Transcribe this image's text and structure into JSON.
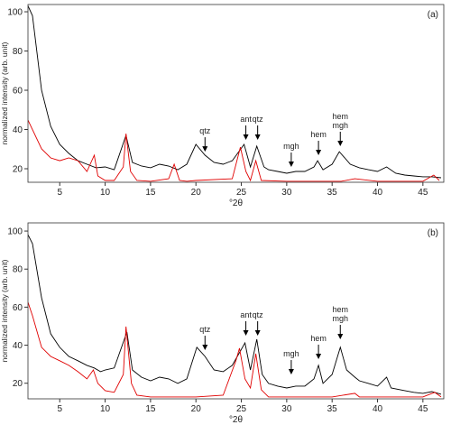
{
  "chart_data": [
    {
      "type": "line",
      "panel_label": "(a)",
      "xlabel": "°2θ",
      "ylabel": "normalized intensity (arb. unit)",
      "xlim": [
        1.5,
        47.3
      ],
      "ylim": [
        13.1,
        103.7
      ],
      "xticks": [
        5,
        10,
        15,
        20,
        25,
        30,
        35,
        40,
        45
      ],
      "yticks": [
        20,
        40,
        60,
        80,
        100
      ],
      "series": [
        {
          "color": "#000000",
          "x": [
            1.5,
            2,
            3,
            4,
            5,
            6,
            7,
            8,
            9,
            10,
            11,
            12.3,
            13,
            14,
            15,
            16,
            17,
            18,
            19,
            20,
            21,
            22,
            23,
            24,
            25.3,
            26,
            26.7,
            27.5,
            28,
            29,
            30,
            31,
            32,
            33,
            33.4,
            34,
            35,
            35.8,
            37,
            38,
            39,
            40,
            41,
            42,
            43,
            44,
            45,
            46,
            47
          ],
          "values": [
            103,
            98,
            60,
            41.6,
            32.4,
            27.8,
            24.1,
            22.3,
            20.5,
            20.9,
            19.5,
            37,
            23.2,
            21.4,
            20.5,
            22.3,
            21.4,
            19.5,
            22.3,
            32.4,
            26.9,
            23.2,
            22.3,
            24.1,
            32.4,
            20.9,
            31.5,
            20.9,
            19.5,
            18.6,
            17.7,
            18.6,
            18.6,
            20.9,
            24.1,
            19.5,
            22.3,
            28.7,
            22.3,
            20.5,
            19.5,
            18.6,
            20.9,
            17.7,
            16.8,
            16.3,
            15.9,
            15.9,
            15.4
          ]
        },
        {
          "color": "#e00000",
          "x": [
            1.5,
            3,
            4,
            5,
            6,
            7,
            8,
            8.8,
            9.2,
            10,
            11,
            12,
            12.3,
            12.8,
            13.5,
            15,
            17,
            17.6,
            18.2,
            19,
            20,
            24,
            24.9,
            25.5,
            26,
            26.6,
            27.2,
            30,
            36,
            37.5,
            40,
            45,
            46.2,
            46.8
          ],
          "values": [
            44.8,
            30.1,
            25.5,
            24.1,
            25.5,
            24.1,
            18.6,
            26.9,
            16.3,
            14,
            14,
            20.9,
            37.9,
            18.6,
            14,
            13.6,
            14.9,
            22.3,
            14,
            13.6,
            14,
            14.9,
            31,
            18.6,
            14,
            24.1,
            14,
            13.6,
            13.6,
            14.9,
            13.6,
            13.6,
            16.8,
            14
          ]
        }
      ],
      "annotations": [
        {
          "lines": [
            "qtz"
          ],
          "x": 21,
          "y": 28.7
        },
        {
          "lines": [
            "ant"
          ],
          "x": 25.5,
          "y": 34.7
        },
        {
          "lines": [
            "qtz"
          ],
          "x": 26.8,
          "y": 34.7
        },
        {
          "lines": [
            "mgh"
          ],
          "x": 30.5,
          "y": 20.9
        },
        {
          "lines": [
            "hem"
          ],
          "x": 33.5,
          "y": 26.9
        },
        {
          "lines": [
            "hem",
            "mgh"
          ],
          "x": 35.9,
          "y": 31.5
        }
      ]
    },
    {
      "type": "line",
      "panel_label": "(b)",
      "xlabel": "°2θ",
      "ylabel": "normalized intensity (arb. unit)",
      "xlim": [
        1.5,
        47.3
      ],
      "ylim": [
        11.8,
        104.3
      ],
      "xticks": [
        5,
        10,
        15,
        20,
        25,
        30,
        35,
        40,
        45
      ],
      "yticks": [
        20,
        40,
        60,
        80,
        100
      ],
      "series": [
        {
          "color": "#000000",
          "x": [
            1.5,
            2,
            3,
            4,
            5,
            6,
            7,
            8,
            8.8,
            9.5,
            10,
            11,
            12.4,
            13,
            14,
            15,
            16,
            17,
            18,
            19,
            20.1,
            21,
            22,
            23,
            24,
            25.4,
            26,
            26.7,
            27.3,
            28,
            29,
            30,
            31,
            32,
            33,
            33.5,
            34,
            35,
            35.9,
            36.6,
            37.5,
            38,
            39,
            40,
            41,
            41.5,
            43,
            44,
            45,
            46,
            47
          ],
          "values": [
            98.1,
            93.4,
            64.9,
            46,
            38.9,
            34.1,
            31.8,
            29.4,
            28,
            26.1,
            27,
            28,
            46.9,
            27,
            23.2,
            21.3,
            23.2,
            22.3,
            19.9,
            22.3,
            38.9,
            34.1,
            27,
            26.1,
            29.4,
            41.2,
            27,
            43.1,
            24.6,
            19.9,
            18.5,
            17.5,
            18.5,
            18.5,
            22.3,
            29.4,
            19.9,
            24.6,
            38.9,
            27,
            23.2,
            21.3,
            19.9,
            18.5,
            23.2,
            17.5,
            16.1,
            15.2,
            14.7,
            15.6,
            14.2
          ]
        },
        {
          "color": "#e00000",
          "x": [
            1.5,
            2,
            3,
            4,
            5,
            6,
            7,
            8,
            8.7,
            9.2,
            10,
            11,
            12,
            12.3,
            12.9,
            13.5,
            15,
            17,
            20,
            23,
            24.4,
            24.8,
            25.4,
            26,
            26.6,
            27.2,
            28,
            35,
            37.5,
            38,
            45,
            46.3,
            47
          ],
          "values": [
            62.6,
            55.5,
            38.9,
            34.1,
            31.8,
            29.4,
            26.1,
            22.3,
            27,
            19.9,
            16.1,
            15.2,
            24.6,
            49.8,
            19.9,
            13.7,
            12.8,
            12.8,
            12.8,
            13.7,
            31.8,
            38.4,
            22.3,
            17.5,
            35.5,
            16.6,
            12.8,
            12.8,
            14.7,
            12.8,
            12.8,
            15.2,
            12.8
          ]
        }
      ],
      "annotations": [
        {
          "lines": [
            "qtz"
          ],
          "x": 21,
          "y": 37.4
        },
        {
          "lines": [
            "ant"
          ],
          "x": 25.5,
          "y": 45
        },
        {
          "lines": [
            "qtz"
          ],
          "x": 26.8,
          "y": 45
        },
        {
          "lines": [
            "mgh"
          ],
          "x": 30.5,
          "y": 24.6
        },
        {
          "lines": [
            "hem"
          ],
          "x": 33.5,
          "y": 32.7
        },
        {
          "lines": [
            "hem",
            "mgh"
          ],
          "x": 35.9,
          "y": 43.1
        }
      ]
    }
  ]
}
